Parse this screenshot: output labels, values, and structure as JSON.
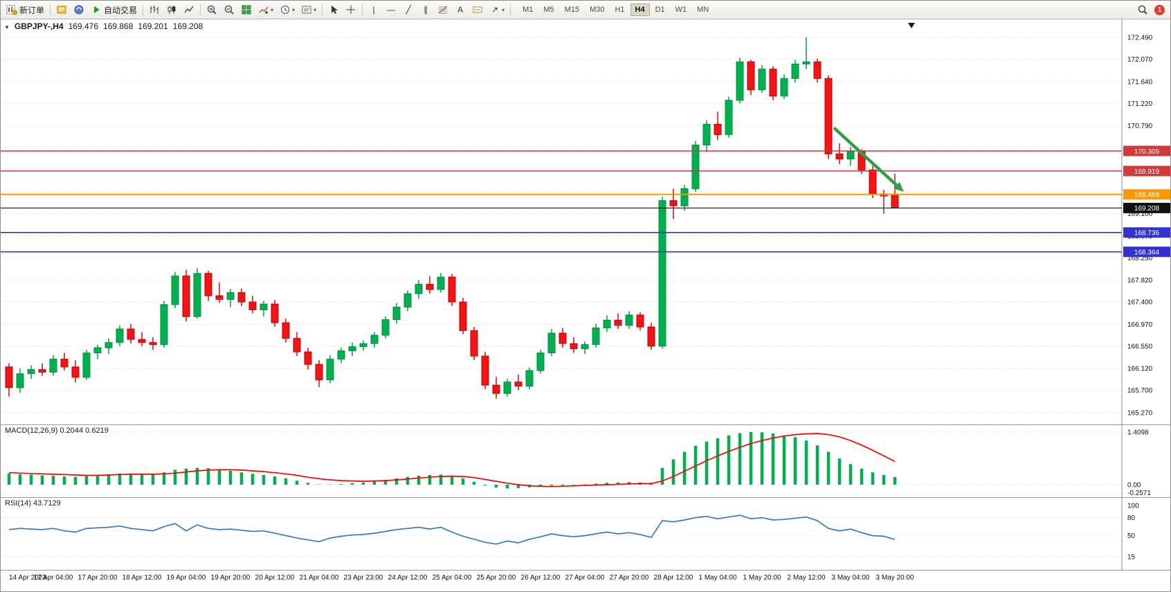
{
  "toolbar": {
    "new_order_label": "新订单",
    "autotrading_label": "自动交易",
    "timeframes": [
      "M1",
      "M5",
      "M15",
      "M30",
      "H1",
      "H4",
      "D1",
      "W1",
      "MN"
    ],
    "active_timeframe": "H4",
    "notification_count": "1"
  },
  "icons": {
    "dropdown": "▾",
    "chart_menu": "▼",
    "vertical_line": "|",
    "horizontal_line": "—",
    "trendline": "╱",
    "channel": "∥",
    "text_tool": "A",
    "arrows_tool": "↗"
  },
  "symbol_header": {
    "symbol": "GBPJPY-,H4",
    "open": "169.476",
    "high": "169.868",
    "low": "169.201",
    "close": "169.208"
  },
  "chart_data": [
    {
      "type": "candlestick",
      "title": "GBPJPY-,H4",
      "ylim": [
        165.27,
        172.49
      ],
      "up_color": "#00b050",
      "up_stroke": "#008f3e",
      "down_color": "#f01414",
      "down_stroke": "#c00000",
      "grid_values": [
        172.49,
        172.07,
        171.64,
        171.22,
        170.79,
        170.37,
        169.94,
        169.52,
        169.1,
        168.67,
        168.25,
        167.82,
        167.4,
        166.97,
        166.55,
        166.12,
        165.7,
        165.27
      ],
      "y_ticks": [
        {
          "value": 172.49,
          "label": "172.490"
        },
        {
          "value": 172.07,
          "label": "172.070"
        },
        {
          "value": 171.64,
          "label": "171.640"
        },
        {
          "value": 171.22,
          "label": "171.220"
        },
        {
          "value": 170.79,
          "label": "170.790"
        },
        {
          "value": 169.1,
          "label": "169.100"
        },
        {
          "value": 168.67,
          "label": "168.670"
        },
        {
          "value": 168.25,
          "label": "168.250"
        },
        {
          "value": 167.82,
          "label": "167.820"
        },
        {
          "value": 167.4,
          "label": "167.400"
        },
        {
          "value": 166.97,
          "label": "166.970"
        },
        {
          "value": 166.55,
          "label": "166.550"
        },
        {
          "value": 166.12,
          "label": "166.120"
        },
        {
          "value": 165.7,
          "label": "165.700"
        },
        {
          "value": 165.27,
          "label": "165.270"
        }
      ],
      "levels": [
        {
          "value": 170.305,
          "label": "170.305",
          "color": "#cf3a3a",
          "width": 1.6
        },
        {
          "value": 169.919,
          "label": "169.919",
          "color": "#cf3a3a",
          "width": 1.6
        },
        {
          "value": 169.469,
          "label": "169.469",
          "color": "#ff9800",
          "width": 2
        },
        {
          "value": 169.208,
          "label": "169.208",
          "color": "#111111",
          "width": 1.1
        },
        {
          "value": 168.736,
          "label": "168.736",
          "color": "#3333cc",
          "width": 1.6
        },
        {
          "value": 168.364,
          "label": "168.364",
          "color": "#3333cc",
          "width": 1.6
        }
      ],
      "arrow": {
        "from": {
          "index": 74.5,
          "price": 170.75
        },
        "to": {
          "index": 80.8,
          "price": 169.52
        },
        "color": "#2f9e44",
        "width": 4.5
      },
      "x_labels": [
        "14 Apr 2023",
        "17 Apr 04:00",
        "17 Apr 20:00",
        "18 Apr 12:00",
        "19 Apr 04:00",
        "19 Apr 20:00",
        "20 Apr 12:00",
        "21 Apr 04:00",
        "23 Apr 23:00",
        "24 Apr 12:00",
        "25 Apr 04:00",
        "25 Apr 20:00",
        "26 Apr 12:00",
        "27 Apr 04:00",
        "27 Apr 20:00",
        "28 Apr 12:00",
        "1 May 04:00",
        "1 May 20:00",
        "2 May 12:00",
        "3 May 04:00",
        "3 May 20:00"
      ],
      "label_every": 4,
      "candles": [
        [
          166.15,
          166.22,
          165.58,
          165.75
        ],
        [
          165.75,
          166.12,
          165.65,
          166.02
        ],
        [
          166.02,
          166.18,
          165.92,
          166.1
        ],
        [
          166.1,
          166.22,
          165.98,
          166.05
        ],
        [
          166.05,
          166.38,
          165.98,
          166.3
        ],
        [
          166.3,
          166.42,
          166.08,
          166.15
        ],
        [
          166.15,
          166.28,
          165.85,
          165.95
        ],
        [
          165.95,
          166.48,
          165.9,
          166.42
        ],
        [
          166.42,
          166.58,
          166.3,
          166.52
        ],
        [
          166.52,
          166.7,
          166.4,
          166.62
        ],
        [
          166.62,
          166.95,
          166.55,
          166.88
        ],
        [
          166.88,
          166.98,
          166.6,
          166.68
        ],
        [
          166.68,
          166.82,
          166.55,
          166.62
        ],
        [
          166.62,
          166.72,
          166.48,
          166.58
        ],
        [
          166.58,
          167.42,
          166.52,
          167.35
        ],
        [
          167.35,
          167.98,
          167.28,
          167.9
        ],
        [
          167.9,
          168.02,
          167.02,
          167.12
        ],
        [
          167.12,
          168.05,
          167.08,
          167.95
        ],
        [
          167.95,
          168.0,
          167.42,
          167.52
        ],
        [
          167.52,
          167.78,
          167.38,
          167.45
        ],
        [
          167.45,
          167.65,
          167.3,
          167.58
        ],
        [
          167.58,
          167.66,
          167.32,
          167.4
        ],
        [
          167.4,
          167.52,
          167.18,
          167.25
        ],
        [
          167.25,
          167.42,
          167.12,
          167.36
        ],
        [
          167.36,
          167.44,
          166.92,
          167.0
        ],
        [
          167.0,
          167.08,
          166.62,
          166.7
        ],
        [
          166.7,
          166.82,
          166.36,
          166.44
        ],
        [
          166.44,
          166.52,
          166.1,
          166.2
        ],
        [
          166.2,
          166.28,
          165.76,
          165.9
        ],
        [
          165.9,
          166.38,
          165.84,
          166.3
        ],
        [
          166.3,
          166.52,
          166.22,
          166.46
        ],
        [
          166.46,
          166.62,
          166.36,
          166.54
        ],
        [
          166.54,
          166.66,
          166.46,
          166.6
        ],
        [
          166.6,
          166.82,
          166.52,
          166.76
        ],
        [
          166.76,
          167.12,
          166.7,
          167.06
        ],
        [
          167.06,
          167.38,
          166.98,
          167.3
        ],
        [
          167.3,
          167.62,
          167.22,
          167.56
        ],
        [
          167.56,
          167.82,
          167.46,
          167.74
        ],
        [
          167.74,
          167.9,
          167.56,
          167.64
        ],
        [
          167.64,
          167.96,
          167.58,
          167.88
        ],
        [
          167.88,
          167.94,
          167.32,
          167.4
        ],
        [
          167.4,
          167.48,
          166.78,
          166.85
        ],
        [
          166.85,
          166.92,
          166.28,
          166.36
        ],
        [
          166.36,
          166.44,
          165.72,
          165.8
        ],
        [
          165.8,
          165.96,
          165.54,
          165.64
        ],
        [
          165.64,
          165.92,
          165.58,
          165.86
        ],
        [
          165.86,
          166.0,
          165.7,
          165.78
        ],
        [
          165.78,
          166.14,
          165.72,
          166.08
        ],
        [
          166.08,
          166.48,
          166.02,
          166.42
        ],
        [
          166.42,
          166.88,
          166.36,
          166.8
        ],
        [
          166.8,
          166.9,
          166.52,
          166.6
        ],
        [
          166.6,
          166.72,
          166.42,
          166.5
        ],
        [
          166.5,
          166.64,
          166.4,
          166.58
        ],
        [
          166.58,
          166.98,
          166.52,
          166.9
        ],
        [
          166.9,
          167.14,
          166.82,
          167.05
        ],
        [
          167.05,
          167.18,
          166.88,
          166.95
        ],
        [
          166.95,
          167.22,
          166.88,
          167.15
        ],
        [
          167.15,
          167.2,
          166.85,
          166.92
        ],
        [
          166.92,
          167.0,
          166.48,
          166.55
        ],
        [
          166.55,
          169.42,
          166.5,
          169.35
        ],
        [
          169.35,
          169.58,
          169.0,
          169.25
        ],
        [
          169.25,
          169.65,
          169.15,
          169.58
        ],
        [
          169.58,
          170.5,
          169.52,
          170.42
        ],
        [
          170.42,
          170.9,
          170.28,
          170.82
        ],
        [
          170.82,
          171.06,
          170.52,
          170.62
        ],
        [
          170.62,
          171.35,
          170.56,
          171.28
        ],
        [
          171.28,
          172.1,
          171.22,
          172.02
        ],
        [
          172.02,
          172.06,
          171.38,
          171.48
        ],
        [
          171.48,
          171.96,
          171.42,
          171.88
        ],
        [
          171.88,
          171.94,
          171.28,
          171.36
        ],
        [
          171.36,
          171.78,
          171.3,
          171.7
        ],
        [
          171.7,
          172.06,
          171.62,
          171.98
        ],
        [
          171.98,
          172.49,
          171.88,
          172.02
        ],
        [
          172.02,
          172.08,
          171.62,
          171.7
        ],
        [
          171.7,
          171.76,
          170.15,
          170.25
        ],
        [
          170.25,
          170.45,
          170.05,
          170.15
        ],
        [
          170.15,
          170.38,
          170.02,
          170.3
        ],
        [
          170.3,
          170.34,
          169.86,
          169.94
        ],
        [
          169.94,
          170.02,
          169.4,
          169.48
        ],
        [
          169.48,
          169.56,
          169.1,
          169.44
        ],
        [
          169.476,
          169.868,
          169.201,
          169.208
        ]
      ]
    },
    {
      "type": "bar",
      "name": "MACD",
      "label": "MACD(12,26,9) 0.2044 0.6219",
      "bar_color": "#00b050",
      "line_color": "#ff0000",
      "ylim": [
        -0.2571,
        1.4098
      ],
      "y_ticks": [
        {
          "value": 1.4098,
          "label": "1.4098"
        },
        {
          "value": 0,
          "label": "0.00"
        },
        {
          "value": -0.2571,
          "label": "-0.2571"
        }
      ],
      "values": [
        0.3,
        0.28,
        0.27,
        0.25,
        0.24,
        0.22,
        0.21,
        0.23,
        0.25,
        0.28,
        0.3,
        0.3,
        0.28,
        0.27,
        0.33,
        0.4,
        0.43,
        0.45,
        0.44,
        0.41,
        0.37,
        0.33,
        0.29,
        0.26,
        0.22,
        0.17,
        0.11,
        0.05,
        0.01,
        0.01,
        0.02,
        0.04,
        0.06,
        0.09,
        0.13,
        0.17,
        0.21,
        0.24,
        0.26,
        0.27,
        0.24,
        0.17,
        0.08,
        -0.02,
        -0.08,
        -0.1,
        -0.09,
        -0.07,
        -0.05,
        -0.03,
        -0.02,
        -0.01,
        0.01,
        0.03,
        0.05,
        0.06,
        0.07,
        0.06,
        0.05,
        0.45,
        0.68,
        0.88,
        1.04,
        1.15,
        1.24,
        1.32,
        1.38,
        1.41,
        1.4,
        1.37,
        1.32,
        1.27,
        1.18,
        1.05,
        0.88,
        0.7,
        0.55,
        0.43,
        0.33,
        0.26,
        0.2044
      ],
      "signal": [
        0.32,
        0.31,
        0.3,
        0.29,
        0.28,
        0.27,
        0.26,
        0.25,
        0.25,
        0.26,
        0.27,
        0.28,
        0.28,
        0.28,
        0.29,
        0.31,
        0.34,
        0.37,
        0.39,
        0.4,
        0.4,
        0.39,
        0.37,
        0.35,
        0.32,
        0.29,
        0.25,
        0.2,
        0.16,
        0.13,
        0.11,
        0.1,
        0.09,
        0.1,
        0.11,
        0.13,
        0.15,
        0.18,
        0.2,
        0.22,
        0.23,
        0.22,
        0.19,
        0.14,
        0.09,
        0.04,
        0.0,
        -0.03,
        -0.04,
        -0.05,
        -0.04,
        -0.03,
        -0.02,
        -0.01,
        0.0,
        0.01,
        0.02,
        0.03,
        0.03,
        0.1,
        0.22,
        0.36,
        0.5,
        0.64,
        0.77,
        0.89,
        1.0,
        1.1,
        1.18,
        1.25,
        1.3,
        1.34,
        1.36,
        1.37,
        1.34,
        1.28,
        1.18,
        1.06,
        0.92,
        0.77,
        0.6219
      ]
    },
    {
      "type": "line",
      "name": "RSI",
      "label": "RSI(14) 43.7129",
      "line_color": "#3478c8",
      "ylim": [
        0,
        106
      ],
      "level_values": [
        80,
        50,
        15
      ],
      "y_ticks": [
        {
          "value": 100,
          "label": "100"
        },
        {
          "value": 80,
          "label": "80"
        },
        {
          "value": 50,
          "label": "50"
        },
        {
          "value": 15,
          "label": "15"
        }
      ],
      "values": [
        60,
        62,
        61,
        60,
        62,
        58,
        56,
        62,
        63,
        64,
        66,
        62,
        60,
        58,
        65,
        70,
        58,
        68,
        62,
        60,
        61,
        59,
        57,
        58,
        54,
        50,
        46,
        43,
        40,
        46,
        49,
        51,
        52,
        54,
        57,
        60,
        62,
        64,
        61,
        64,
        56,
        49,
        44,
        39,
        36,
        41,
        38,
        44,
        48,
        53,
        50,
        48,
        50,
        53,
        56,
        53,
        55,
        52,
        47,
        75,
        73,
        76,
        80,
        82,
        78,
        81,
        84,
        78,
        80,
        76,
        77,
        79,
        81,
        75,
        62,
        58,
        61,
        55,
        50,
        49,
        43.7
      ]
    }
  ]
}
